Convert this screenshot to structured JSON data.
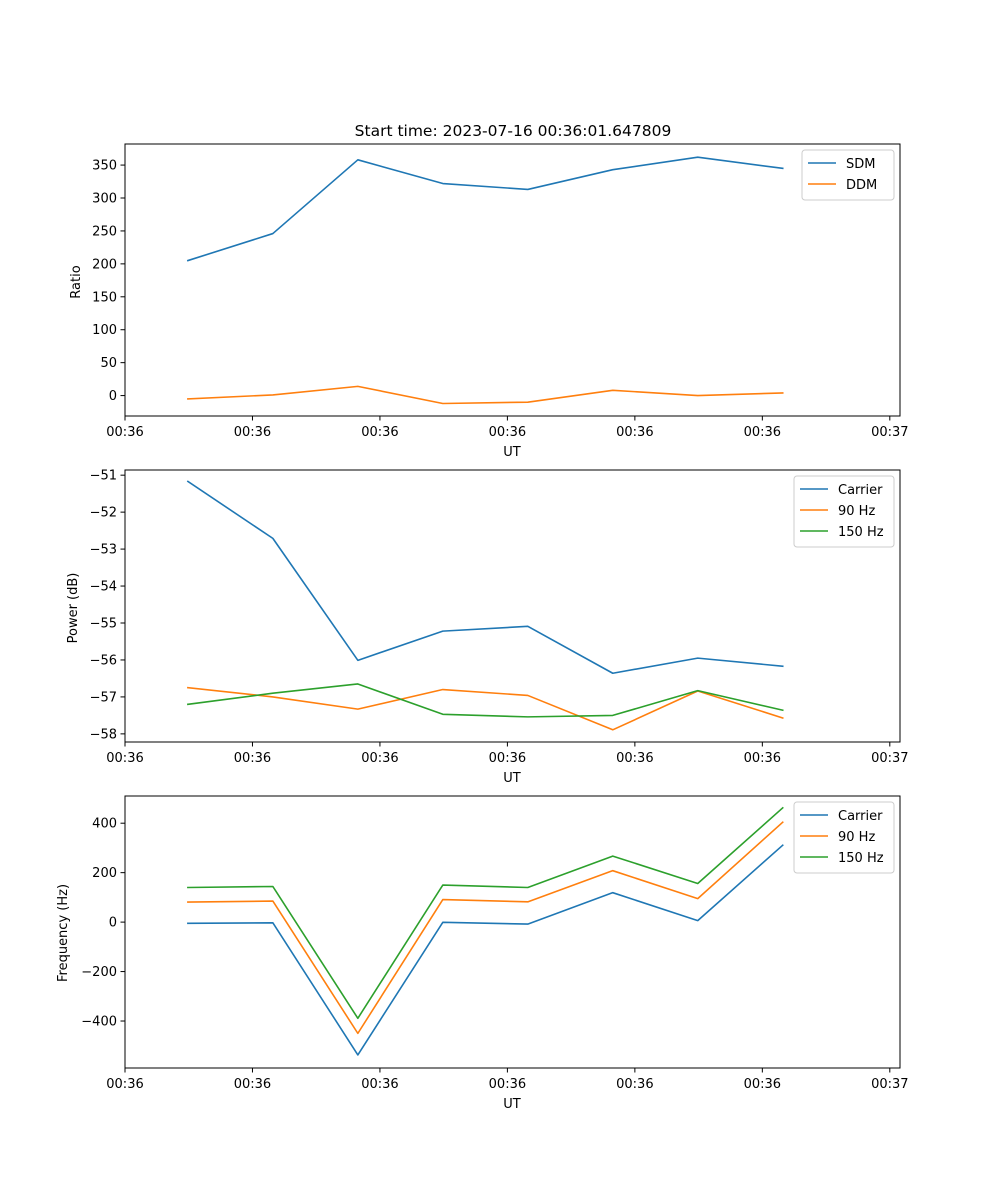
{
  "figure_title": "Start time: 2023-07-16 00:36:01.647809",
  "colors": {
    "blue": "#1f77b4",
    "orange": "#ff7f0e",
    "green": "#2ca02c"
  },
  "chart_data": [
    {
      "type": "line",
      "title": "Start time: 2023-07-16 00:36:01.647809",
      "xlabel": "UT",
      "ylabel": "Ratio",
      "x_index": [
        0,
        1,
        2,
        3,
        4,
        5,
        6,
        7
      ],
      "xlim": [
        -0.74,
        8.38
      ],
      "xticks": [
        -0.74,
        0.76,
        2.26,
        3.76,
        5.26,
        6.76,
        8.26
      ],
      "xtick_labels": [
        "00:36",
        "00:36",
        "00:36",
        "00:36",
        "00:36",
        "00:36",
        "00:37"
      ],
      "ylim": [
        -31,
        382
      ],
      "yticks": [
        0,
        50,
        100,
        150,
        200,
        250,
        300,
        350
      ],
      "ytick_labels": [
        "0",
        "50",
        "100",
        "150",
        "200",
        "250",
        "300",
        "350"
      ],
      "legend_position": "top-right",
      "series": [
        {
          "name": "SDM",
          "color": "#1f77b4",
          "values": [
            205,
            246,
            358,
            322,
            313,
            343,
            362,
            345
          ]
        },
        {
          "name": "DDM",
          "color": "#ff7f0e",
          "values": [
            -5,
            1,
            14,
            -12,
            -10,
            8,
            0,
            4
          ]
        }
      ]
    },
    {
      "type": "line",
      "title": "",
      "xlabel": "UT",
      "ylabel": "Power (dB)",
      "x_index": [
        0,
        1,
        2,
        3,
        4,
        5,
        6,
        7
      ],
      "xlim": [
        -0.74,
        8.38
      ],
      "xticks": [
        -0.74,
        0.76,
        2.26,
        3.76,
        5.26,
        6.76,
        8.26
      ],
      "xtick_labels": [
        "00:36",
        "00:36",
        "00:36",
        "00:36",
        "00:36",
        "00:36",
        "00:37"
      ],
      "ylim": [
        -58.22,
        -50.86
      ],
      "yticks": [
        -58,
        -57,
        -56,
        -55,
        -54,
        -53,
        -52,
        -51
      ],
      "ytick_labels": [
        "−58",
        "−57",
        "−56",
        "−55",
        "−54",
        "−53",
        "−52",
        "−51"
      ],
      "legend_position": "top-right",
      "series": [
        {
          "name": "Carrier",
          "color": "#1f77b4",
          "values": [
            -51.17,
            -52.71,
            -56.01,
            -55.22,
            -55.09,
            -56.36,
            -55.95,
            -56.17
          ]
        },
        {
          "name": "90 Hz",
          "color": "#ff7f0e",
          "values": [
            -56.75,
            -57.0,
            -57.33,
            -56.8,
            -56.96,
            -57.89,
            -56.84,
            -57.57
          ]
        },
        {
          "name": "150 Hz",
          "color": "#2ca02c",
          "values": [
            -57.2,
            -56.9,
            -56.65,
            -57.47,
            -57.54,
            -57.5,
            -56.83,
            -57.36
          ]
        }
      ]
    },
    {
      "type": "line",
      "title": "",
      "xlabel": "UT",
      "ylabel": "Frequency (Hz)",
      "x_index": [
        0,
        1,
        2,
        3,
        4,
        5,
        6,
        7
      ],
      "xlim": [
        -0.74,
        8.38
      ],
      "xticks": [
        -0.74,
        0.76,
        2.26,
        3.76,
        5.26,
        6.76,
        8.26
      ],
      "xtick_labels": [
        "00:36",
        "00:36",
        "00:36",
        "00:36",
        "00:36",
        "00:36",
        "00:37"
      ],
      "ylim": [
        -590,
        510
      ],
      "yticks": [
        -400,
        -200,
        0,
        200,
        400
      ],
      "ytick_labels": [
        "−400",
        "−200",
        "0",
        "200",
        "400"
      ],
      "legend_position": "top-right",
      "series": [
        {
          "name": "Carrier",
          "color": "#1f77b4",
          "values": [
            -5,
            -3,
            -537,
            -1,
            -8,
            119,
            6,
            311
          ]
        },
        {
          "name": "90 Hz",
          "color": "#ff7f0e",
          "values": [
            81,
            85,
            -450,
            91,
            82,
            208,
            95,
            404
          ]
        },
        {
          "name": "150 Hz",
          "color": "#2ca02c",
          "values": [
            140,
            144,
            -389,
            150,
            140,
            267,
            156,
            462
          ]
        }
      ]
    }
  ]
}
